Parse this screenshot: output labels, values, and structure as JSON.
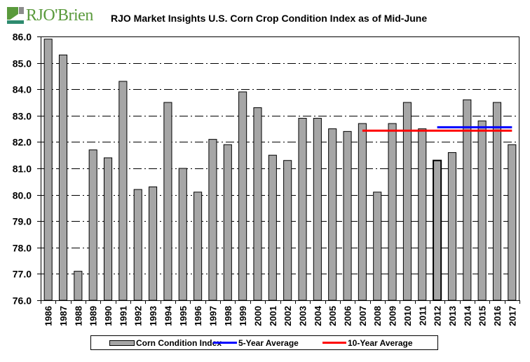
{
  "header": {
    "logo_text": "RJO'Brien",
    "title": "RJO Market Insights U.S. Corn Crop Condition Index as of Mid-June"
  },
  "colors": {
    "bar_fill": "#a6a6a6",
    "five_year": "#0000ff",
    "ten_year": "#ff0000",
    "logo_green": "#5a9a3c",
    "logo_gray": "#8c8c8c",
    "logo_teal": "#2e8b6e"
  },
  "legend": {
    "items": [
      {
        "label": "Corn Condition Index",
        "type": "bar"
      },
      {
        "label": "5-Year Average",
        "type": "line",
        "color": "#0000ff"
      },
      {
        "label": "10-Year Average",
        "type": "line",
        "color": "#ff0000"
      }
    ]
  },
  "chart_data": {
    "type": "bar",
    "title": "RJO Market Insights U.S. Corn Crop Condition Index as of Mid-June",
    "xlabel": "",
    "ylabel": "",
    "ylim": [
      76.0,
      86.0
    ],
    "yticks": [
      "76.0",
      "77.0",
      "78.0",
      "79.0",
      "80.0",
      "81.0",
      "82.0",
      "83.0",
      "84.0",
      "85.0",
      "86.0"
    ],
    "grid": true,
    "legend_position": "bottom",
    "categories": [
      "1986",
      "1987",
      "1988",
      "1989",
      "1990",
      "1991",
      "1992",
      "1993",
      "1994",
      "1995",
      "1996",
      "1997",
      "1998",
      "1999",
      "2000",
      "2001",
      "2002",
      "2003",
      "2004",
      "2005",
      "2006",
      "2007",
      "2008",
      "2009",
      "2010",
      "2011",
      "2012",
      "2013",
      "2014",
      "2015",
      "2016",
      "2017"
    ],
    "series": [
      {
        "name": "Corn Condition Index",
        "type": "bar",
        "values": [
          85.9,
          85.3,
          77.1,
          81.7,
          81.4,
          84.3,
          80.2,
          80.3,
          83.5,
          81.0,
          80.1,
          82.1,
          81.9,
          83.9,
          83.3,
          81.5,
          81.3,
          82.9,
          82.9,
          82.5,
          82.4,
          82.7,
          80.1,
          82.7,
          83.5,
          82.5,
          81.3,
          81.6,
          83.6,
          82.8,
          83.5,
          81.9
        ]
      },
      {
        "name": "5-Year Average",
        "type": "line",
        "value": 82.56,
        "x_range": [
          "2012",
          "2017"
        ]
      },
      {
        "name": "10-Year Average",
        "type": "line",
        "value": 82.43,
        "x_range": [
          "2007",
          "2017"
        ]
      }
    ]
  }
}
